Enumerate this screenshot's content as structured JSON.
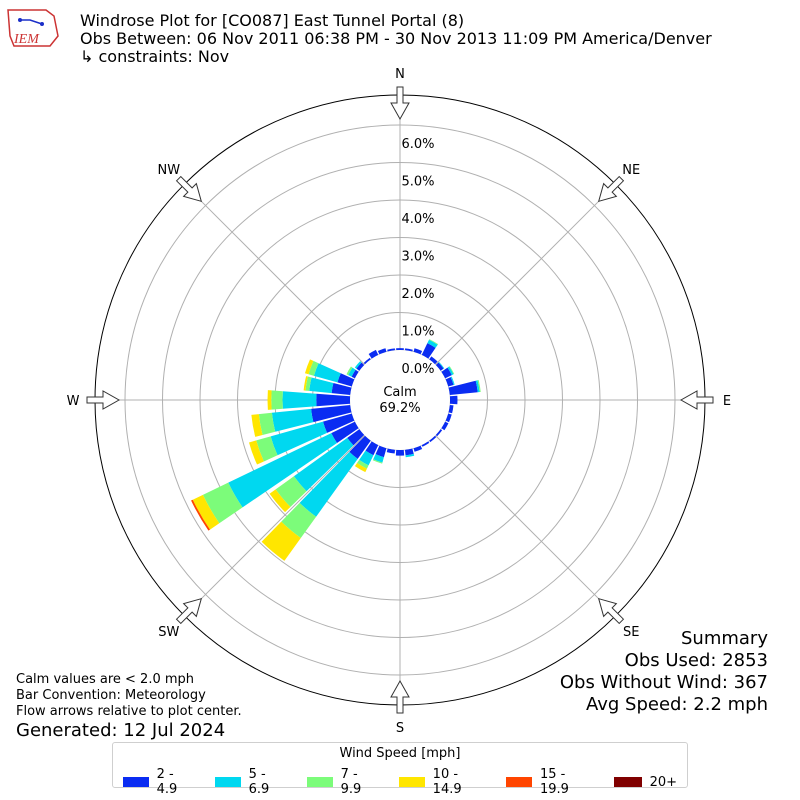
{
  "header": {
    "logo_text": "IEM",
    "title": "Windrose Plot for [CO087] East Tunnel Portal (8)",
    "obs_between": "Obs Between: 06 Nov 2011 06:38 PM - 30 Nov 2013 11:09 PM America/Denver",
    "constraints": "↳ constraints: Nov"
  },
  "notes": {
    "line1": "Calm values are < 2.0 mph",
    "line2": "Bar Convention: Meteorology",
    "line3": "Flow arrows relative to plot center.",
    "generated": "Generated: 12 Jul 2024"
  },
  "summary": {
    "title": "Summary",
    "obs_used": "Obs Used: 2853",
    "obs_without_wind": "Obs Without Wind: 367",
    "avg_speed": "Avg Speed: 2.2 mph"
  },
  "legend": {
    "title": "Wind Speed [mph]"
  },
  "colors": {
    "ring": "#b0b0b0",
    "outline": "#000000"
  },
  "chart_data": {
    "type": "windrose",
    "calm": {
      "label": "Calm",
      "value_text": "69.2%"
    },
    "radial_ticks": [
      "0.0%",
      "1.0%",
      "2.0%",
      "3.0%",
      "4.0%",
      "5.0%",
      "6.0%"
    ],
    "radial_values": [
      0,
      1,
      2,
      3,
      4,
      5,
      6
    ],
    "rmax": 6.8,
    "directions": [
      "N",
      "NE",
      "E",
      "SE",
      "S",
      "SW",
      "W",
      "NW"
    ],
    "speed_bins": [
      {
        "label": "2 - 4.9",
        "color": "#0a2cf2"
      },
      {
        "label": "5 - 6.9",
        "color": "#00d8f0"
      },
      {
        "label": "7 - 9.9",
        "color": "#7cfc7a"
      },
      {
        "label": "10 - 14.9",
        "color": "#ffe600"
      },
      {
        "label": "15 - 19.9",
        "color": "#ff4500"
      },
      {
        "label": "20+",
        "color": "#800000"
      }
    ],
    "sectors": [
      {
        "dir": 0,
        "values": [
          0.05,
          0.0,
          0,
          0,
          0,
          0
        ]
      },
      {
        "dir": 10,
        "values": [
          0.05,
          0.0,
          0,
          0,
          0,
          0
        ]
      },
      {
        "dir": 20,
        "values": [
          0.1,
          0.0,
          0,
          0,
          0,
          0
        ]
      },
      {
        "dir": 30,
        "values": [
          0.35,
          0.1,
          0.02,
          0,
          0,
          0
        ]
      },
      {
        "dir": 40,
        "values": [
          0.1,
          0.0,
          0,
          0,
          0,
          0
        ]
      },
      {
        "dir": 50,
        "values": [
          0.1,
          0.02,
          0,
          0,
          0,
          0
        ]
      },
      {
        "dir": 60,
        "values": [
          0.2,
          0.05,
          0.02,
          0,
          0,
          0
        ]
      },
      {
        "dir": 70,
        "values": [
          0.15,
          0.03,
          0,
          0,
          0,
          0
        ]
      },
      {
        "dir": 80,
        "values": [
          0.75,
          0.05,
          0.03,
          0,
          0,
          0
        ]
      },
      {
        "dir": 90,
        "values": [
          0.2,
          0.0,
          0,
          0,
          0,
          0
        ]
      },
      {
        "dir": 100,
        "values": [
          0.1,
          0.0,
          0,
          0,
          0,
          0
        ]
      },
      {
        "dir": 110,
        "values": [
          0.1,
          0.0,
          0,
          0,
          0,
          0
        ]
      },
      {
        "dir": 120,
        "values": [
          0.1,
          0.0,
          0,
          0,
          0,
          0
        ]
      },
      {
        "dir": 130,
        "values": [
          0.05,
          0.0,
          0,
          0,
          0,
          0
        ]
      },
      {
        "dir": 140,
        "values": [
          0.05,
          0.0,
          0,
          0,
          0,
          0
        ]
      },
      {
        "dir": 150,
        "values": [
          0.05,
          0.0,
          0,
          0,
          0,
          0
        ]
      },
      {
        "dir": 160,
        "values": [
          0.1,
          0.0,
          0,
          0,
          0,
          0
        ]
      },
      {
        "dir": 170,
        "values": [
          0.15,
          0.05,
          0,
          0,
          0,
          0
        ]
      },
      {
        "dir": 180,
        "values": [
          0.15,
          0.0,
          0,
          0,
          0,
          0
        ]
      },
      {
        "dir": 190,
        "values": [
          0.1,
          0.0,
          0,
          0,
          0,
          0
        ]
      },
      {
        "dir": 200,
        "values": [
          0.25,
          0.15,
          0.03,
          0,
          0,
          0
        ]
      },
      {
        "dir": 210,
        "values": [
          0.3,
          0.3,
          0.1,
          0.1,
          0,
          0
        ]
      },
      {
        "dir": 220,
        "values": [
          0.6,
          1.9,
          0.7,
          0.75,
          0,
          0
        ]
      },
      {
        "dir": 230,
        "values": [
          0.4,
          1.75,
          0.6,
          0.2,
          0,
          0
        ]
      },
      {
        "dir": 240,
        "values": [
          0.7,
          3.05,
          0.75,
          0.3,
          0.05,
          0.0
        ]
      },
      {
        "dir": 250,
        "values": [
          0.8,
          1.45,
          0.4,
          0.2,
          0,
          0
        ]
      },
      {
        "dir": 260,
        "values": [
          1.05,
          1.05,
          0.35,
          0.2,
          0,
          0
        ]
      },
      {
        "dir": 270,
        "values": [
          0.9,
          0.9,
          0.3,
          0.1,
          0,
          0
        ]
      },
      {
        "dir": 280,
        "values": [
          0.5,
          0.6,
          0.1,
          0.05,
          0,
          0
        ]
      },
      {
        "dir": 290,
        "values": [
          0.4,
          0.65,
          0.15,
          0.1,
          0,
          0
        ]
      },
      {
        "dir": 300,
        "values": [
          0.1,
          0.1,
          0.05,
          0,
          0,
          0
        ]
      },
      {
        "dir": 310,
        "values": [
          0.1,
          0.05,
          0,
          0,
          0,
          0
        ]
      },
      {
        "dir": 320,
        "values": [
          0.05,
          0.0,
          0,
          0,
          0,
          0
        ]
      },
      {
        "dir": 330,
        "values": [
          0.15,
          0.0,
          0,
          0,
          0,
          0
        ]
      },
      {
        "dir": 340,
        "values": [
          0.1,
          0.0,
          0,
          0,
          0,
          0
        ]
      },
      {
        "dir": 350,
        "values": [
          0.05,
          0.0,
          0,
          0,
          0,
          0
        ]
      }
    ]
  }
}
